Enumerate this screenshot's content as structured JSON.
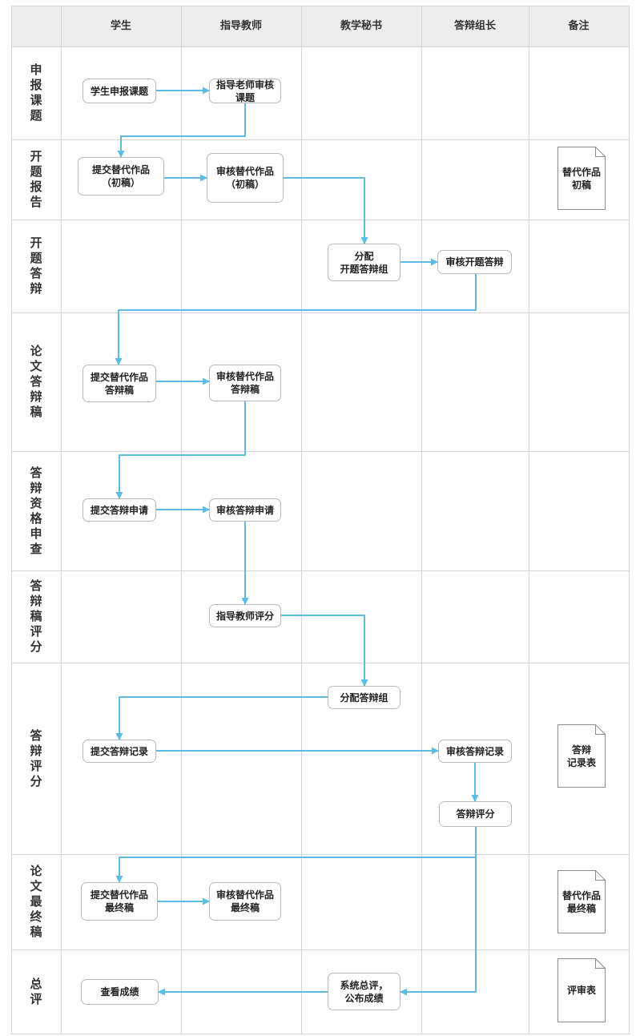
{
  "colors": {
    "arrow": "#5bbde4",
    "grid": "#d6d6d6",
    "header_bg": "#ededed",
    "box_border": "#b9b9b9"
  },
  "columns": [
    "学生",
    "指导教师",
    "教学秘书",
    "答辩组长",
    "备注"
  ],
  "rows": [
    "申报课题",
    "开题报告",
    "开题答辩",
    "论文答辩稿",
    "答辩资格申查",
    "答辩稿评分",
    "答辩评分",
    "论文最终稿",
    "总评"
  ],
  "nodes": {
    "n1": "学生申报课题",
    "n2": "指导老师审核\n课题",
    "n3": "提交替代作品\n（初稿）",
    "n4": "审核替代作品\n（初稿）",
    "n5": "分配\n开题答辩组",
    "n6": "审核开题答辩",
    "n7": "提交替代作品\n答辩稿",
    "n8": "审核替代作品\n答辩稿",
    "n9": "提交答辩申请",
    "n10": "审核答辩申请",
    "n11": "指导教师评分",
    "n12": "分配答辩组",
    "n13": "提交答辩记录",
    "n14": "审核答辩记录",
    "n15": "答辩评分",
    "n16": "提交替代作品\n最终稿",
    "n17": "审核替代作品\n最终稿",
    "n18": "查看成绩",
    "n19": "系统总评，\n公布成绩"
  },
  "notes": {
    "d1": "替代作品\n初稿",
    "d2": "答辩\n记录表",
    "d3": "替代作品\n最终稿",
    "d4": "评审表"
  }
}
